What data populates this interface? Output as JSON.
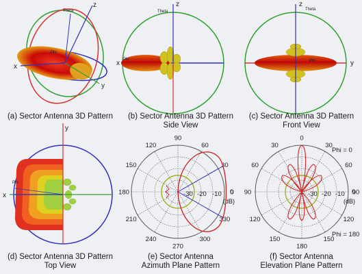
{
  "panels": [
    {
      "id": "a",
      "caption_lines": [
        "(a) Sector Antenna 3D Pattern"
      ],
      "axes": {
        "x": "x",
        "y": "y",
        "z": "z"
      },
      "angle_labels": [
        "Theta",
        "Phi"
      ]
    },
    {
      "id": "b",
      "caption_lines": [
        "(b) Sector Antenna 3D Pattern",
        "Side View"
      ],
      "axes": {
        "x": "x",
        "z": "z"
      },
      "angle_labels": [
        "Theta",
        "Phi"
      ]
    },
    {
      "id": "c",
      "caption_lines": [
        "(c) Sector Antenna 3D Pattern",
        "Front View"
      ],
      "axes": {
        "y": "y",
        "z": "z"
      },
      "angle_labels": [
        "Theta",
        "Phi"
      ]
    },
    {
      "id": "d",
      "caption_lines": [
        "(d) Sector Antenna 3D Pattern",
        "Top View"
      ],
      "axes": {
        "x": "x",
        "y": "y"
      },
      "angle_labels": [
        "Phi"
      ]
    },
    {
      "id": "e",
      "caption_lines": [
        "(e) Sector Antenna",
        "Azimuth Plane Pattern"
      ],
      "angle_ticks": [
        "90",
        "60",
        "30",
        "0",
        "330",
        "300",
        "270",
        "240",
        "210",
        "180",
        "150",
        "120"
      ],
      "radial_ticks": [
        "-30",
        "-20",
        "-10",
        "0"
      ],
      "unit": "(dB)"
    },
    {
      "id": "f",
      "caption_lines": [
        "(f) Sector Antenna",
        "Elevation Plane Pattern"
      ],
      "angle_ticks": [
        "0",
        "30",
        "60",
        "90",
        "120",
        "150",
        "180",
        "150",
        "120",
        "90",
        "60",
        "30"
      ],
      "radial_ticks": [
        "-30",
        "-20",
        "-10",
        "0"
      ],
      "unit": "(dB)",
      "legend": [
        "Phi = 0",
        "Phi = 180"
      ]
    }
  ],
  "colors": {
    "red_circle": "#d83030",
    "green_circle": "#30a030",
    "blue_circle": "#3030c0",
    "lobe_core": "#c00000",
    "lobe_mid": "#f07010",
    "lobe_outer": "#d0d020",
    "lobe_edge": "#80c040",
    "pattern_line": "#d02828",
    "ref_line": "#a0b020",
    "grid": "#555555"
  }
}
